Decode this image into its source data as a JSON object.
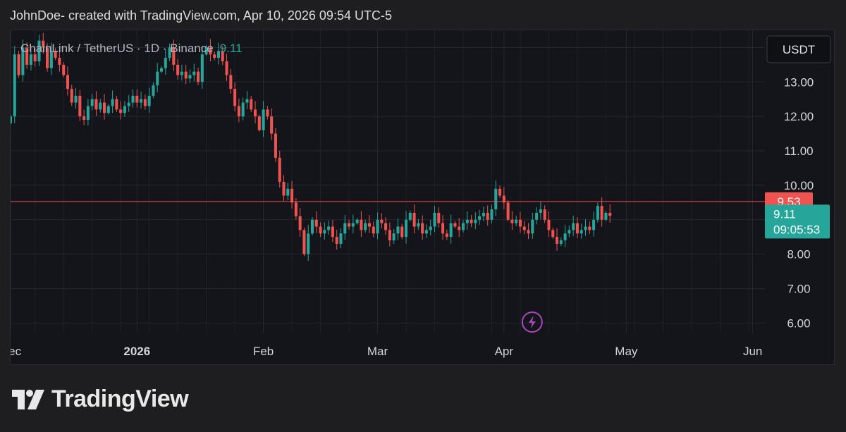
{
  "header": {
    "attribution": "JohnDoe- created with TradingView.com, Apr 10, 2026 09:54 UTC-5"
  },
  "logo": {
    "text": "TradingView"
  },
  "colors": {
    "up": "#26a69a",
    "down": "#ef5350",
    "grid": "#242731",
    "price_line": "#ef5350",
    "alert": "#ab47bc"
  },
  "icons": {
    "alert": "lightning-bolt-icon"
  },
  "chart_data": {
    "type": "candlestick",
    "title": "ChainLink / TetherUS · 1D · Binance",
    "last_value_label": "9.11",
    "currency": "USDT",
    "ylim": [
      5.7,
      14.5
    ],
    "y_ticks": [
      6.0,
      7.0,
      8.0,
      10.0,
      11.0,
      12.0,
      13.0
    ],
    "y_tick_labels": [
      "6.00",
      "7.00",
      "8.00",
      "10.00",
      "11.00",
      "12.00",
      "13.00"
    ],
    "x_range": [
      "2025-12-01",
      "2026-06-04"
    ],
    "x_ticks": [
      {
        "date": "2025-12-01",
        "label": "Dec",
        "bold": false
      },
      {
        "date": "2026-01-01",
        "label": "2026",
        "bold": true
      },
      {
        "date": "2026-02-01",
        "label": "Feb",
        "bold": false
      },
      {
        "date": "2026-03-01",
        "label": "Mar",
        "bold": false
      },
      {
        "date": "2026-04-01",
        "label": "Apr",
        "bold": false
      },
      {
        "date": "2026-05-01",
        "label": "May",
        "bold": false
      },
      {
        "date": "2026-06-01",
        "label": "Jun",
        "bold": false
      }
    ],
    "horizontal_line": {
      "value": 9.53,
      "label": "9.53"
    },
    "current_price": {
      "value": 9.11,
      "label": "9.11",
      "countdown": "09:05:53"
    },
    "alert_marker_date": "2026-04-01",
    "start_date": "2025-12-01",
    "closes": [
      12.0,
      13.8,
      13.2,
      14.0,
      13.5,
      13.8,
      13.6,
      14.2,
      14.0,
      13.4,
      13.9,
      13.7,
      13.5,
      13.2,
      12.8,
      12.4,
      12.6,
      12.0,
      11.9,
      12.3,
      12.5,
      12.2,
      12.4,
      12.1,
      12.3,
      12.5,
      12.2,
      12.1,
      12.3,
      12.4,
      12.6,
      12.4,
      12.5,
      12.3,
      12.6,
      12.9,
      13.3,
      13.4,
      13.7,
      14.0,
      13.5,
      13.2,
      13.3,
      13.1,
      13.2,
      13.3,
      13.0,
      13.8,
      14.0,
      13.8,
      13.7,
      13.9,
      13.6,
      13.2,
      12.8,
      12.3,
      12.0,
      12.4,
      12.5,
      12.2,
      12.0,
      11.6,
      12.2,
      12.0,
      11.5,
      10.8,
      10.1,
      9.7,
      9.9,
      9.5,
      9.1,
      8.7,
      8.0,
      8.6,
      9.0,
      8.8,
      8.6,
      8.7,
      8.8,
      8.5,
      8.3,
      8.6,
      8.9,
      8.8,
      8.9,
      9.0,
      8.7,
      8.9,
      8.8,
      8.6,
      9.0,
      8.9,
      8.7,
      8.4,
      8.6,
      8.8,
      8.5,
      9.0,
      9.2,
      8.8,
      8.9,
      8.6,
      8.7,
      8.8,
      9.2,
      8.9,
      8.6,
      8.5,
      8.9,
      8.8,
      8.7,
      8.9,
      9.0,
      8.9,
      9.0,
      9.1,
      9.2,
      9.0,
      9.3,
      9.9,
      9.7,
      9.5,
      9.0,
      8.9,
      9.0,
      8.8,
      8.7,
      8.6,
      9.0,
      9.2,
      9.3,
      9.0,
      8.7,
      8.5,
      8.3,
      8.4,
      8.6,
      8.7,
      8.9,
      8.6,
      8.7,
      8.8,
      8.7,
      9.0,
      9.4,
      9.0,
      9.2,
      9.11
    ]
  }
}
